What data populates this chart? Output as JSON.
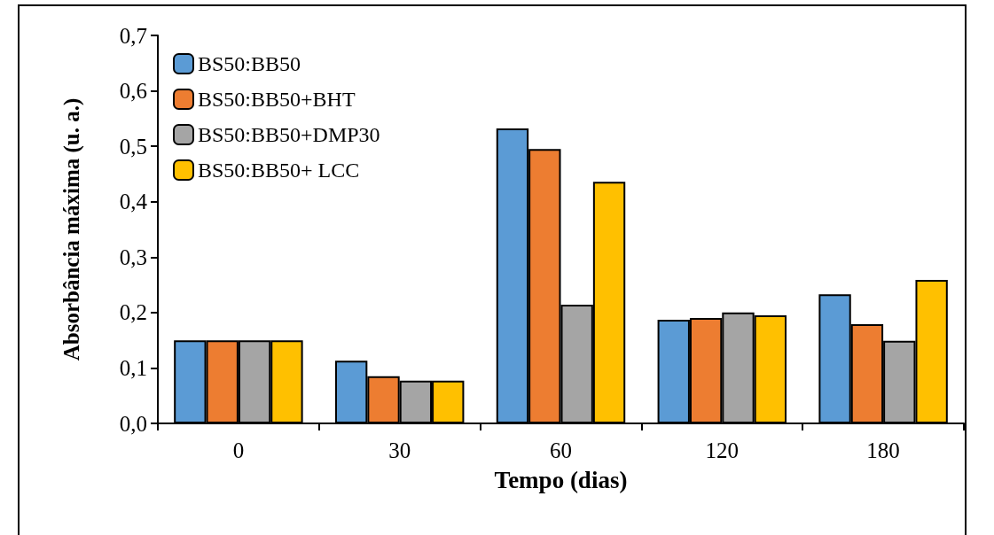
{
  "chart_data": {
    "type": "bar",
    "xlabel": "Tempo (dias)",
    "ylabel": "Absorbância máxima (u. a.)",
    "categories": [
      "0",
      "30",
      "60",
      "120",
      "180"
    ],
    "series": [
      {
        "name": "BS50:BB50",
        "color": "#5b9bd5",
        "values": [
          0.15,
          0.113,
          0.532,
          0.187,
          0.233
        ]
      },
      {
        "name": "BS50:BB50+BHT",
        "color": "#ed7d31",
        "values": [
          0.15,
          0.085,
          0.495,
          0.19,
          0.179
        ]
      },
      {
        "name": "BS50:BB50+DMP30",
        "color": "#a5a5a5",
        "values": [
          0.15,
          0.077,
          0.214,
          0.2,
          0.149
        ]
      },
      {
        "name": "BS50:BB50+ LCC",
        "color": "#ffc000",
        "values": [
          0.15,
          0.077,
          0.436,
          0.195,
          0.259
        ]
      }
    ],
    "ylim": [
      0,
      0.7
    ],
    "yticks": [
      {
        "value": 0,
        "label": "0,0"
      },
      {
        "value": 0.1,
        "label": "0,1"
      },
      {
        "value": 0.2,
        "label": "0,2"
      },
      {
        "value": 0.3,
        "label": "0,3"
      },
      {
        "value": 0.4,
        "label": "0,4"
      },
      {
        "value": 0.5,
        "label": "0,5"
      },
      {
        "value": 0.6,
        "label": "0,6"
      },
      {
        "value": 0.7,
        "label": "0,7"
      }
    ],
    "grid": false,
    "legend": "top left"
  }
}
